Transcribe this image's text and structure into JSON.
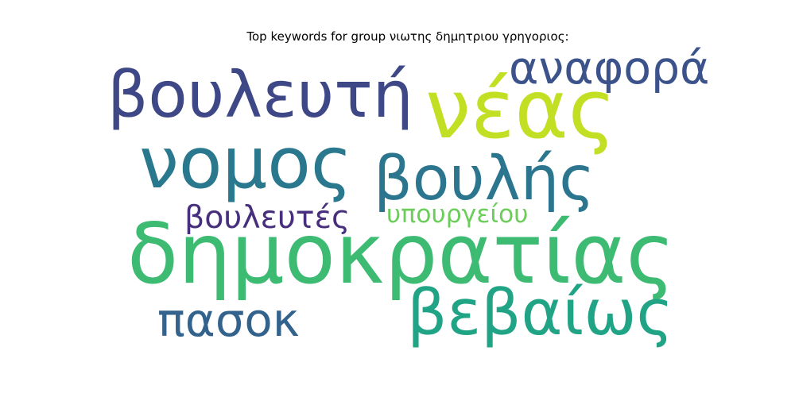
{
  "title": "Top keywords for group νιωτης δημητριου γρηγοριος:",
  "words": [
    {
      "text": "δημοκρατίας",
      "color": "#3dbb73"
    },
    {
      "text": "βουλευτή",
      "color": "#3e4886"
    },
    {
      "text": "νέας",
      "color": "#c2df23"
    },
    {
      "text": "νομος",
      "color": "#2a788e"
    },
    {
      "text": "βουλής",
      "color": "#2b758e"
    },
    {
      "text": "βεβαίως",
      "color": "#21a485"
    },
    {
      "text": "αναφορά",
      "color": "#3b528b"
    },
    {
      "text": "πασοκ",
      "color": "#33638d"
    },
    {
      "text": "βουλευτές",
      "color": "#472f7d"
    },
    {
      "text": "υπουργείου",
      "color": "#6ccd5a"
    }
  ]
}
